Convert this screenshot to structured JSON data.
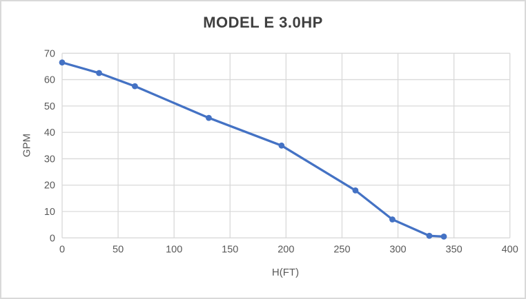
{
  "chart": {
    "title": "MODEL E 3.0HP",
    "x_axis_title": "H(FT)",
    "y_axis_title": "GPM"
  },
  "chart_data": {
    "type": "line",
    "title": "MODEL E 3.0HP",
    "xlabel": "H(FT)",
    "ylabel": "GPM",
    "x": [
      0,
      33,
      65,
      131,
      196,
      262,
      295,
      328,
      341
    ],
    "y": [
      66.5,
      62.5,
      57.5,
      45.5,
      35,
      18,
      7,
      0.8,
      0.5
    ],
    "xlim": [
      0,
      400
    ],
    "ylim": [
      0,
      70
    ],
    "x_ticks": [
      0,
      50,
      100,
      150,
      200,
      250,
      300,
      350,
      400
    ],
    "y_ticks": [
      0,
      10,
      20,
      30,
      40,
      50,
      60,
      70
    ],
    "grid": true,
    "legend": false,
    "series_name": "MODEL E 3.0HP",
    "line_color": "#4472c4",
    "marker": "circle",
    "gridline_color": "#d9d9d9",
    "axis_line_color": "#d9d9d9",
    "tick_label_color": "#595959",
    "title_color": "#3f3f3f"
  }
}
